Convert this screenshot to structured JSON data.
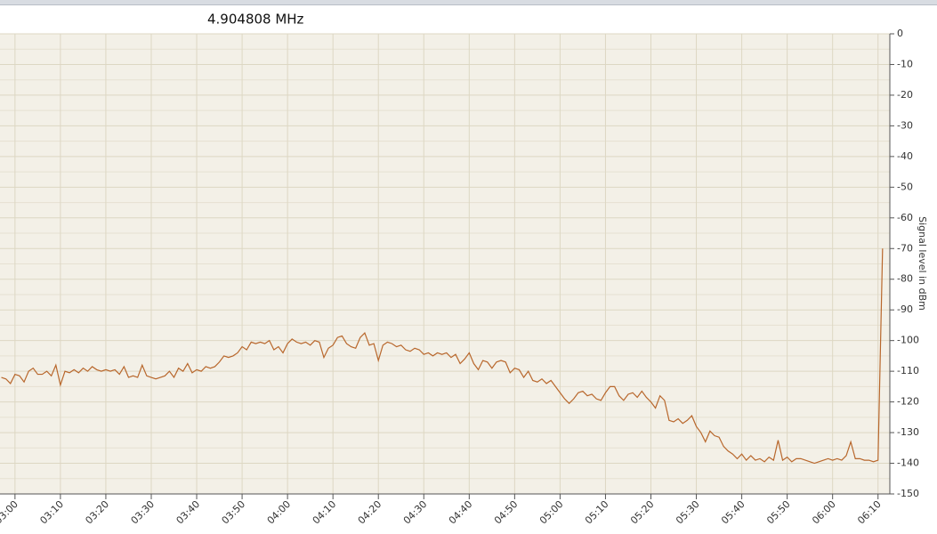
{
  "chart_data": {
    "type": "line",
    "title": "4.904808 MHz",
    "y_label": "Signal level in dBm",
    "x": [
      177,
      178,
      179,
      180,
      181,
      182,
      183,
      184,
      185,
      186,
      187,
      188,
      189,
      190,
      191,
      192,
      193,
      194,
      195,
      196,
      197,
      198,
      199,
      200,
      201,
      202,
      203,
      204,
      205,
      206,
      207,
      208,
      209,
      210,
      211,
      212,
      213,
      214,
      215,
      216,
      217,
      218,
      219,
      220,
      221,
      222,
      223,
      224,
      225,
      226,
      227,
      228,
      229,
      230,
      231,
      232,
      233,
      234,
      235,
      236,
      237,
      238,
      239,
      240,
      241,
      242,
      243,
      244,
      245,
      246,
      247,
      248,
      249,
      250,
      251,
      252,
      253,
      254,
      255,
      256,
      257,
      258,
      259,
      260,
      261,
      262,
      263,
      264,
      265,
      266,
      267,
      268,
      269,
      270,
      271,
      272,
      273,
      274,
      275,
      276,
      277,
      278,
      279,
      280,
      281,
      282,
      283,
      284,
      285,
      286,
      287,
      288,
      289,
      290,
      291,
      292,
      293,
      294,
      295,
      296,
      297,
      298,
      299,
      300,
      301,
      302,
      303,
      304,
      305,
      306,
      307,
      308,
      309,
      310,
      311,
      312,
      313,
      314,
      315,
      316,
      317,
      318,
      319,
      320,
      321,
      322,
      323,
      324,
      325,
      326,
      327,
      328,
      329,
      330,
      331,
      332,
      333,
      334,
      335,
      336,
      337,
      338,
      339,
      340,
      341,
      342,
      343,
      344,
      345,
      346,
      347,
      348,
      349,
      350,
      351,
      352,
      353,
      354,
      355,
      356,
      357,
      358,
      359,
      360,
      361,
      362,
      363,
      364,
      365,
      366,
      367,
      368,
      369,
      370,
      371
    ],
    "series": [
      {
        "color": "#b8672c",
        "values": [
          -112,
          -112.5,
          -114,
          -111,
          -111.5,
          -113.5,
          -110,
          -109,
          -111,
          -111,
          -110,
          -111.5,
          -108,
          -114.5,
          -110,
          -110.5,
          -109.5,
          -110.5,
          -109,
          -110,
          -108.5,
          -109.5,
          -110,
          -109.5,
          -110,
          -109.5,
          -111,
          -108.5,
          -112,
          -111.5,
          -112,
          -108,
          -111.5,
          -112,
          -112.5,
          -112,
          -111.5,
          -110,
          -112,
          -109,
          -110,
          -107.5,
          -110.5,
          -109.5,
          -110,
          -108.5,
          -109,
          -108.5,
          -107,
          -105,
          -105.5,
          -105,
          -104,
          -102,
          -103,
          -100.5,
          -101,
          -100.5,
          -101,
          -100,
          -103,
          -102,
          -104,
          -101,
          -99.5,
          -100.5,
          -101,
          -100.5,
          -101.5,
          -100,
          -100.5,
          -105.5,
          -102.5,
          -101.5,
          -99,
          -98.5,
          -101,
          -102,
          -102.5,
          -99,
          -97.5,
          -101.5,
          -101,
          -106.5,
          -101.5,
          -100.5,
          -101,
          -102,
          -101.5,
          -103,
          -103.5,
          -102.5,
          -103,
          -104.5,
          -104,
          -105,
          -104,
          -104.5,
          -104,
          -105.5,
          -104.5,
          -107.5,
          -106,
          -104,
          -107.5,
          -109.5,
          -106.5,
          -107,
          -109,
          -107,
          -106.5,
          -107,
          -110.5,
          -109,
          -109.5,
          -112,
          -110,
          -113,
          -113.5,
          -112.5,
          -114,
          -113,
          -115,
          -117,
          -119,
          -120.5,
          -119,
          -117,
          -116.5,
          -118,
          -117.5,
          -119,
          -119.5,
          -117,
          -115,
          -115,
          -118,
          -119.5,
          -117.5,
          -117,
          -118.5,
          -116.5,
          -118.5,
          -120,
          -122,
          -118,
          -119.5,
          -126,
          -126.5,
          -125.5,
          -127,
          -126,
          -124.5,
          -128,
          -130,
          -133,
          -129.5,
          -131,
          -131.5,
          -134.5,
          -136,
          -137,
          -138.5,
          -137,
          -139,
          -137.5,
          -139,
          -138.5,
          -139.5,
          -138,
          -139,
          -132.5,
          -139,
          -138,
          -139.5,
          -138.5,
          -138.5,
          -139,
          -139.5,
          -140,
          -139.5,
          -139,
          -138.5,
          -139,
          -138.5,
          -139,
          -137.5,
          -133,
          -138.5,
          -138.5,
          -139,
          -139,
          -139.5,
          -139,
          -70
        ]
      }
    ],
    "xlim": [
      176.7,
      372.6
    ],
    "xticks": [
      {
        "value": 180,
        "label": "03:00"
      },
      {
        "value": 190,
        "label": "03:10"
      },
      {
        "value": 200,
        "label": "03:20"
      },
      {
        "value": 210,
        "label": "03:30"
      },
      {
        "value": 220,
        "label": "03:40"
      },
      {
        "value": 230,
        "label": "03:50"
      },
      {
        "value": 240,
        "label": "04:00"
      },
      {
        "value": 250,
        "label": "04:10"
      },
      {
        "value": 260,
        "label": "04:20"
      },
      {
        "value": 270,
        "label": "04:30"
      },
      {
        "value": 280,
        "label": "04:40"
      },
      {
        "value": 290,
        "label": "04:50"
      },
      {
        "value": 300,
        "label": "05:00"
      },
      {
        "value": 310,
        "label": "05:10"
      },
      {
        "value": 320,
        "label": "05:20"
      },
      {
        "value": 330,
        "label": "05:30"
      },
      {
        "value": 340,
        "label": "05:40"
      },
      {
        "value": 350,
        "label": "05:50"
      },
      {
        "value": 360,
        "label": "06:00"
      },
      {
        "value": 370,
        "label": "06:10"
      }
    ],
    "ylim": [
      -150,
      0
    ],
    "yticks": [
      0,
      -10,
      -20,
      -30,
      -40,
      -50,
      -60,
      -70,
      -80,
      -90,
      -100,
      -110,
      -120,
      -130,
      -140,
      -150
    ],
    "grid": true
  }
}
